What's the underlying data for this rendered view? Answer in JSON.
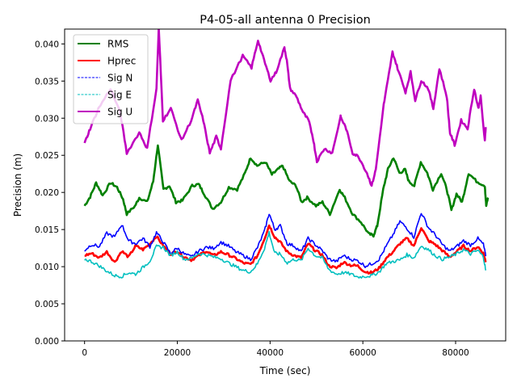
{
  "chart_data": {
    "type": "line",
    "title": "P4-05-all antenna 0 Precision",
    "xlabel": "Time (sec)",
    "ylabel": "Precision (m)",
    "xlim": [
      -4300,
      90800
    ],
    "ylim": [
      0.0,
      0.042
    ],
    "xticks": [
      0,
      20000,
      40000,
      60000,
      80000
    ],
    "xtick_labels": [
      "0",
      "20000",
      "40000",
      "60000",
      "80000"
    ],
    "yticks": [
      0.0,
      0.005,
      0.01,
      0.015,
      0.02,
      0.025,
      0.03,
      0.035,
      0.04
    ],
    "ytick_labels": [
      "0.000",
      "0.005",
      "0.010",
      "0.015",
      "0.020",
      "0.025",
      "0.030",
      "0.035",
      "0.040"
    ],
    "grid": false,
    "legend_position": "upper-left",
    "series": [
      {
        "name": "RMS",
        "color": "#008000",
        "style": "solid",
        "x": [
          0,
          1200,
          2500,
          3900,
          5600,
          7000,
          8300,
          9100,
          10900,
          11800,
          13500,
          14800,
          15800,
          17000,
          18300,
          19700,
          21100,
          23200,
          24600,
          25800,
          27600,
          29400,
          31100,
          32900,
          34600,
          35800,
          37200,
          39000,
          40400,
          41500,
          42700,
          44200,
          45600,
          46800,
          48000,
          49900,
          51300,
          52900,
          55000,
          56100,
          57800,
          59600,
          61300,
          62300,
          63100,
          64400,
          65400,
          66600,
          67900,
          69100,
          69900,
          71100,
          72500,
          73900,
          75100,
          76900,
          78100,
          79100,
          80200,
          81400,
          82800,
          84500,
          86300,
          86600,
          87000
        ],
        "y": [
          0.0182,
          0.0194,
          0.0213,
          0.0196,
          0.0213,
          0.0207,
          0.0191,
          0.0171,
          0.0182,
          0.0193,
          0.0187,
          0.0215,
          0.0264,
          0.0204,
          0.0209,
          0.0187,
          0.0189,
          0.0209,
          0.0211,
          0.0198,
          0.0178,
          0.0187,
          0.0207,
          0.0204,
          0.0226,
          0.0247,
          0.0236,
          0.0241,
          0.0224,
          0.023,
          0.0236,
          0.0215,
          0.0209,
          0.0187,
          0.0193,
          0.0182,
          0.0187,
          0.0171,
          0.0204,
          0.0193,
          0.0171,
          0.016,
          0.0144,
          0.0142,
          0.0155,
          0.0204,
          0.0231,
          0.0247,
          0.0226,
          0.0231,
          0.0215,
          0.0209,
          0.0241,
          0.0226,
          0.0204,
          0.0226,
          0.0204,
          0.0176,
          0.0198,
          0.0187,
          0.0226,
          0.0215,
          0.0209,
          0.0182,
          0.0193
        ]
      },
      {
        "name": "Hprec",
        "color": "#ff0000",
        "style": "solid",
        "x": [
          0,
          1500,
          3200,
          4800,
          6500,
          8000,
          9500,
          11000,
          12600,
          14100,
          15500,
          17000,
          18500,
          20000,
          21500,
          23000,
          24600,
          26200,
          27800,
          29400,
          31000,
          32600,
          34200,
          35800,
          37300,
          38800,
          39800,
          41000,
          42200,
          43700,
          45200,
          46700,
          48200,
          49700,
          51200,
          52700,
          54300,
          55800,
          57400,
          58900,
          60500,
          62000,
          63500,
          65000,
          66500,
          68000,
          69500,
          71000,
          72600,
          74100,
          75600,
          77100,
          78700,
          80200,
          81700,
          83200,
          84800,
          86000,
          86500
        ],
        "y": [
          0.0115,
          0.0118,
          0.0112,
          0.012,
          0.0106,
          0.0121,
          0.0113,
          0.0128,
          0.0123,
          0.0131,
          0.0141,
          0.0128,
          0.0117,
          0.0121,
          0.0113,
          0.0109,
          0.0115,
          0.0121,
          0.0115,
          0.012,
          0.0116,
          0.0111,
          0.0105,
          0.0103,
          0.0115,
          0.0138,
          0.0156,
          0.014,
          0.0133,
          0.012,
          0.0115,
          0.0112,
          0.0131,
          0.0122,
          0.0116,
          0.0101,
          0.0098,
          0.0106,
          0.0102,
          0.0101,
          0.0093,
          0.0092,
          0.0098,
          0.0111,
          0.012,
          0.0131,
          0.0138,
          0.0128,
          0.0153,
          0.0135,
          0.013,
          0.0122,
          0.0113,
          0.012,
          0.0128,
          0.0121,
          0.0127,
          0.0118,
          0.0106
        ]
      },
      {
        "name": "Sig N",
        "color": "#0000ff",
        "style": "dashed",
        "x": [
          0,
          1500,
          3200,
          4800,
          6500,
          8000,
          9500,
          11000,
          12600,
          14100,
          15500,
          17000,
          18500,
          20000,
          21500,
          23000,
          24600,
          26200,
          27800,
          29400,
          31000,
          32600,
          34200,
          35800,
          37300,
          38800,
          39800,
          41000,
          42200,
          43700,
          45200,
          46700,
          48200,
          49700,
          51200,
          52700,
          54300,
          55800,
          57400,
          58900,
          60500,
          62000,
          63500,
          65000,
          66500,
          68000,
          69500,
          71000,
          72600,
          74100,
          75600,
          77100,
          78700,
          80200,
          81700,
          83200,
          84800,
          86000,
          86500
        ],
        "y": [
          0.0122,
          0.013,
          0.0127,
          0.0145,
          0.014,
          0.0157,
          0.0135,
          0.0131,
          0.0138,
          0.0127,
          0.0146,
          0.0133,
          0.0118,
          0.0125,
          0.0117,
          0.0113,
          0.0121,
          0.0126,
          0.0125,
          0.0133,
          0.0128,
          0.012,
          0.0115,
          0.011,
          0.0126,
          0.0148,
          0.0172,
          0.015,
          0.0155,
          0.0131,
          0.0128,
          0.012,
          0.0138,
          0.013,
          0.0122,
          0.011,
          0.0107,
          0.0115,
          0.011,
          0.0108,
          0.0101,
          0.0104,
          0.011,
          0.0127,
          0.0143,
          0.0161,
          0.0152,
          0.014,
          0.0173,
          0.0153,
          0.0143,
          0.013,
          0.0121,
          0.0127,
          0.0135,
          0.0129,
          0.0138,
          0.013,
          0.0114
        ]
      },
      {
        "name": "Sig E",
        "color": "#00bfbf",
        "style": "dashed",
        "x": [
          0,
          1500,
          3200,
          4800,
          6500,
          8000,
          9500,
          11000,
          12600,
          14100,
          15500,
          17000,
          18500,
          20000,
          21500,
          23000,
          24600,
          26200,
          27800,
          29400,
          31000,
          32600,
          34200,
          35800,
          37300,
          38800,
          39800,
          41000,
          42200,
          43700,
          45200,
          46700,
          48200,
          49700,
          51200,
          52700,
          54300,
          55800,
          57400,
          58900,
          60500,
          62000,
          63500,
          65000,
          66500,
          68000,
          69500,
          71000,
          72600,
          74100,
          75600,
          77100,
          78700,
          80200,
          81700,
          83200,
          84800,
          86000,
          86500
        ],
        "y": [
          0.011,
          0.0107,
          0.0101,
          0.0094,
          0.0088,
          0.0087,
          0.0092,
          0.009,
          0.0099,
          0.0108,
          0.0127,
          0.0126,
          0.0115,
          0.012,
          0.011,
          0.0111,
          0.0118,
          0.0116,
          0.0113,
          0.0111,
          0.0105,
          0.01,
          0.0095,
          0.0093,
          0.0104,
          0.0125,
          0.0146,
          0.0118,
          0.0117,
          0.0105,
          0.011,
          0.0108,
          0.0125,
          0.0115,
          0.0112,
          0.0096,
          0.009,
          0.0092,
          0.009,
          0.0086,
          0.0087,
          0.0088,
          0.0093,
          0.0104,
          0.0107,
          0.0109,
          0.0116,
          0.0112,
          0.0128,
          0.0123,
          0.0115,
          0.011,
          0.0113,
          0.0117,
          0.0123,
          0.0117,
          0.0122,
          0.0113,
          0.0095
        ]
      },
      {
        "name": "Sig U",
        "color": "#bf00bf",
        "style": "solid",
        "x": [
          0,
          1200,
          3000,
          5600,
          7700,
          9100,
          11800,
          13500,
          15500,
          16000,
          16900,
          18600,
          20900,
          23000,
          24400,
          25600,
          27000,
          28400,
          29400,
          31500,
          34100,
          36000,
          37400,
          38700,
          40100,
          41300,
          43100,
          43600,
          44300,
          45700,
          47100,
          48300,
          49200,
          50100,
          51700,
          53400,
          55200,
          55200,
          56400,
          57800,
          59100,
          60900,
          61900,
          62800,
          64500,
          65400,
          66400,
          67500,
          69200,
          70300,
          71300,
          72600,
          74100,
          75200,
          76500,
          78100,
          78800,
          79800,
          81200,
          82600,
          84000,
          84900,
          85400,
          86300,
          86500
        ],
        "y": [
          0.0266,
          0.0286,
          0.0313,
          0.034,
          0.0307,
          0.0253,
          0.0281,
          0.0259,
          0.034,
          0.0421,
          0.0297,
          0.0313,
          0.027,
          0.0297,
          0.0324,
          0.0297,
          0.0253,
          0.0275,
          0.0259,
          0.0351,
          0.0384,
          0.0368,
          0.0405,
          0.0378,
          0.0351,
          0.0362,
          0.0395,
          0.0378,
          0.034,
          0.0329,
          0.0308,
          0.0297,
          0.0275,
          0.0242,
          0.0259,
          0.0253,
          0.0302,
          0.0302,
          0.0286,
          0.0253,
          0.0248,
          0.0226,
          0.0209,
          0.0231,
          0.0318,
          0.0351,
          0.0389,
          0.0367,
          0.0335,
          0.0362,
          0.0324,
          0.0351,
          0.034,
          0.0313,
          0.0367,
          0.0329,
          0.028,
          0.0264,
          0.0297,
          0.0286,
          0.034,
          0.0313,
          0.0329,
          0.0269,
          0.0288
        ]
      }
    ]
  }
}
